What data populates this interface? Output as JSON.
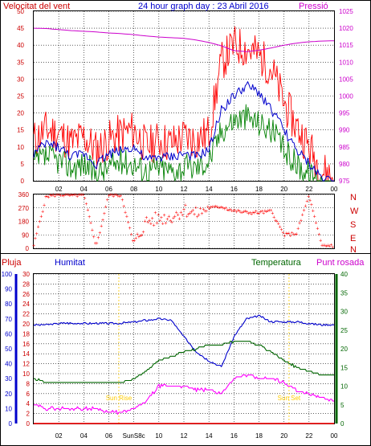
{
  "colors": {
    "frame": "#000000",
    "grid": "#000000",
    "wind_speed": "#ff0000",
    "wind_avg": "#0000cc",
    "wind_min": "#008000",
    "pressure": "#cc00cc",
    "direction": "#ff0000",
    "humidity": "#0000cc",
    "temperature": "#006600",
    "dew_point": "#ff00ff",
    "rain": "#ff0000",
    "sun": "#ffcc00"
  },
  "header": {
    "left_label": "Velocitat del vent",
    "title": "24 hour graph day : 23 Abril 2016",
    "right_label": "Pressió"
  },
  "panel2": {
    "compass": [
      "N",
      "W",
      "S",
      "E",
      "N"
    ]
  },
  "panel3": {
    "labels": {
      "rain": "Pluja",
      "humidity": "Humitat",
      "temperature": "Temperatura",
      "dew_point": "Punt rosada"
    },
    "sun_events": [
      {
        "label": "Sun Rise",
        "hour": 6.8
      },
      {
        "label": "Sun Set",
        "hour": 20.4
      }
    ]
  },
  "x_axis": {
    "ticks": [
      "02",
      "04",
      "06",
      "08",
      "10",
      "12",
      "14",
      "16",
      "18",
      "20",
      "22",
      "00"
    ],
    "ticks_bottom": [
      "02",
      "04",
      "06",
      "SunS8c",
      "10",
      "12",
      "14",
      "16",
      "18",
      "20",
      "22",
      "00"
    ]
  },
  "chart_data": [
    {
      "type": "line",
      "title": "24 hour graph day : 23 Abril 2016",
      "ylabel_left": "Velocitat del vent",
      "ylabel_right": "Pressió",
      "ylim_left": [
        0,
        50
      ],
      "ylim_right": [
        975,
        1025
      ],
      "yticks_left": [
        "0",
        "5",
        "10",
        "15",
        "20",
        "25",
        "30",
        "35",
        "40",
        "45",
        "50"
      ],
      "yticks_right": [
        "975",
        "980",
        "985",
        "990",
        "995",
        "1000",
        "1005",
        "1010",
        "1015",
        "1020",
        "1025"
      ],
      "x_hours": [
        0,
        1,
        2,
        3,
        4,
        5,
        6,
        7,
        8,
        9,
        10,
        11,
        12,
        13,
        14,
        15,
        16,
        17,
        18,
        19,
        20,
        21,
        22,
        23,
        24
      ],
      "series": [
        {
          "name": "Velocitat del vent",
          "axis": "left",
          "values": [
            12,
            15,
            14,
            11,
            13,
            9,
            12,
            14,
            15,
            10,
            12,
            11,
            13,
            12,
            14,
            35,
            40,
            39,
            37,
            33,
            23,
            16,
            10,
            3,
            1
          ]
        },
        {
          "axis": "left",
          "values": [
            8,
            11,
            10,
            7,
            8,
            5,
            8,
            9,
            10,
            6,
            7,
            7,
            8,
            7,
            9,
            21,
            25,
            28,
            26,
            21,
            15,
            9,
            5,
            1,
            0
          ]
        },
        {
          "axis": "left",
          "values": [
            5,
            7,
            6,
            4,
            5,
            2,
            4,
            6,
            5,
            3,
            4,
            3,
            4,
            4,
            6,
            15,
            18,
            19,
            17,
            15,
            9,
            5,
            2,
            0,
            0
          ]
        },
        {
          "name": "Pressió",
          "axis": "right",
          "values": [
            1020,
            1019.9,
            1019.6,
            1019.3,
            1019.1,
            1018.9,
            1018.6,
            1018.4,
            1018.1,
            1017.7,
            1017.4,
            1017.2,
            1017,
            1016.5,
            1015.8,
            1014.8,
            1013.4,
            1013.1,
            1013.5,
            1014.2,
            1015,
            1015.6,
            1016,
            1016.2,
            1016.3
          ]
        }
      ]
    },
    {
      "type": "scatter",
      "title": "",
      "ylabel": "",
      "ylim": [
        0,
        360
      ],
      "yticks": [
        "0",
        "90",
        "180",
        "270",
        "360"
      ],
      "x_hours": [
        0,
        1,
        2,
        3,
        4,
        5,
        6,
        7,
        8,
        9,
        10,
        11,
        12,
        13,
        14,
        15,
        16,
        17,
        18,
        19,
        20,
        21,
        22,
        23,
        24
      ],
      "series": [
        {
          "values": [
            20,
            350,
            360,
            355,
            360,
            15,
            360,
            355,
            25,
            180,
            200,
            210,
            260,
            230,
            270,
            280,
            250,
            240,
            240,
            250,
            90,
            100,
            355,
            20,
            20
          ]
        }
      ]
    },
    {
      "type": "line",
      "title": "",
      "ylim_humidity": [
        0,
        100
      ],
      "ylim_rain": [
        0,
        30
      ],
      "ylim_temperature": [
        0,
        40
      ],
      "yticks_humidity": [
        "0",
        "10",
        "20",
        "30",
        "40",
        "50",
        "60",
        "70",
        "80",
        "90",
        "100"
      ],
      "yticks_rain": [
        "0",
        "2",
        "4",
        "6",
        "8",
        "10",
        "12",
        "14",
        "16",
        "18",
        "20",
        "22",
        "24",
        "26",
        "28",
        "30"
      ],
      "yticks_temperature": [
        "0",
        "5",
        "10",
        "15",
        "20",
        "25",
        "30",
        "35",
        "40"
      ],
      "x_hours": [
        0,
        1,
        2,
        3,
        4,
        5,
        6,
        7,
        8,
        9,
        10,
        11,
        12,
        13,
        14,
        15,
        16,
        17,
        18,
        19,
        20,
        21,
        22,
        23,
        24
      ],
      "series": [
        {
          "name": "Humitat",
          "axis": "humidity",
          "values": [
            66,
            66,
            67,
            67,
            67,
            67,
            67,
            67,
            68,
            69,
            70,
            69,
            58,
            48,
            42,
            38,
            58,
            70,
            72,
            68,
            68,
            68,
            67,
            66,
            66
          ]
        },
        {
          "name": "Temperatura",
          "axis": "temperature",
          "values": [
            12,
            11,
            11,
            11,
            11,
            11,
            11,
            11,
            12,
            14,
            17,
            18,
            19,
            20,
            21,
            21,
            22,
            22,
            21,
            19,
            17,
            15,
            14,
            13,
            13
          ]
        },
        {
          "name": "Punt rosada",
          "axis": "temperature",
          "values": [
            5,
            4,
            4,
            4,
            4,
            4,
            3,
            3,
            4,
            6,
            10,
            10,
            10,
            9,
            9,
            8,
            12,
            13,
            12,
            12,
            11,
            9,
            8,
            7,
            6
          ]
        },
        {
          "name": "Pluja",
          "axis": "rain",
          "values": [
            0,
            0,
            0,
            0,
            0,
            0,
            0,
            0,
            0,
            0,
            0,
            0,
            0,
            0,
            0,
            0,
            0,
            0,
            0,
            0,
            0,
            0,
            0,
            0,
            0
          ]
        }
      ]
    }
  ]
}
